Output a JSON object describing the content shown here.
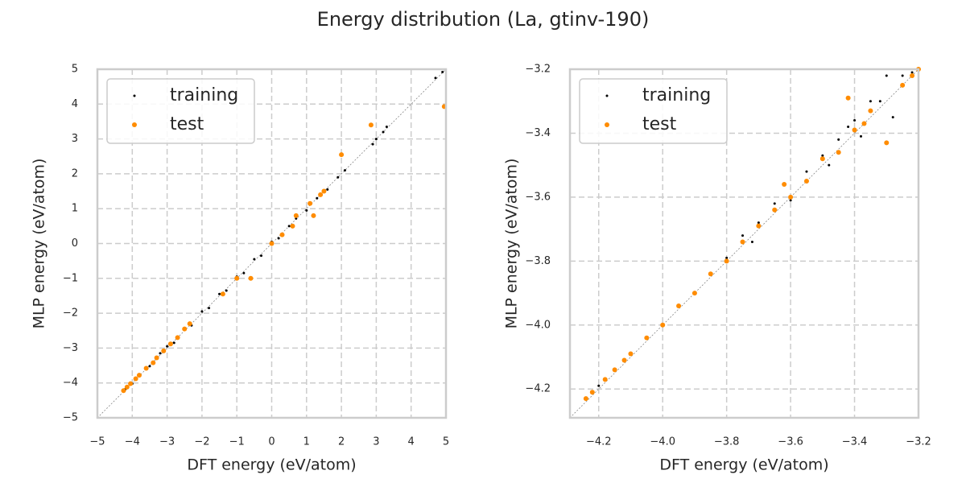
{
  "title": "Energy distribution (La, gtinv-190)",
  "chart_data": [
    {
      "type": "scatter",
      "xlabel": "DFT energy (eV/atom)",
      "ylabel": "MLP energy (eV/atom)",
      "xlim": [
        -5,
        5
      ],
      "ylim": [
        -5,
        5
      ],
      "xticks": [
        {
          "value": -5,
          "label": "−5"
        },
        {
          "value": -4,
          "label": "−4"
        },
        {
          "value": -3,
          "label": "−3"
        },
        {
          "value": -2,
          "label": "−2"
        },
        {
          "value": -1,
          "label": "−1"
        },
        0,
        1,
        2,
        3,
        4,
        5
      ],
      "yticks": [
        {
          "value": -5,
          "label": "−5"
        },
        {
          "value": -4,
          "label": "−4"
        },
        {
          "value": -3,
          "label": "−3"
        },
        {
          "value": -2,
          "label": "−2"
        },
        {
          "value": -1,
          "label": "−1"
        },
        0,
        1,
        2,
        3,
        4,
        5
      ],
      "grid": true,
      "legend": "upper left",
      "series": [
        {
          "name": "training",
          "color": "#000000",
          "x": [
            -4.2,
            -4.0,
            -3.8,
            -3.5,
            -3.2,
            -3.0,
            -2.8,
            -2.5,
            -2.3,
            -2.0,
            -1.8,
            -1.5,
            -1.3,
            -1.0,
            -0.8,
            -0.5,
            -0.3,
            0.0,
            0.2,
            0.5,
            0.7,
            1.0,
            1.3,
            1.6,
            1.9,
            2.1,
            2.9,
            3.0,
            3.2,
            3.3,
            4.7,
            4.9
          ],
          "values": [
            -4.18,
            -4.02,
            -3.75,
            -3.52,
            -3.15,
            -2.95,
            -2.85,
            -2.45,
            -2.35,
            -1.95,
            -1.85,
            -1.45,
            -1.35,
            -0.95,
            -0.85,
            -0.45,
            -0.35,
            0.05,
            0.15,
            0.5,
            0.72,
            0.95,
            1.3,
            1.55,
            1.9,
            2.1,
            2.85,
            3.0,
            3.2,
            3.35,
            4.75,
            4.92
          ]
        },
        {
          "name": "test",
          "color": "#ff8c00",
          "x": [
            -4.25,
            -4.15,
            -4.05,
            -3.9,
            -3.8,
            -3.6,
            -3.4,
            -3.3,
            -3.1,
            -2.9,
            -2.7,
            -2.5,
            -2.35,
            -1.4,
            -1.0,
            -0.6,
            0.0,
            0.3,
            0.6,
            0.7,
            1.1,
            1.2,
            1.4,
            1.5,
            2.0,
            2.85,
            4.95
          ],
          "values": [
            -4.22,
            -4.12,
            -4.02,
            -3.88,
            -3.78,
            -3.58,
            -3.42,
            -3.28,
            -3.08,
            -2.88,
            -2.7,
            -2.45,
            -2.3,
            -1.45,
            -1.0,
            -1.0,
            0.0,
            0.25,
            0.5,
            0.8,
            1.15,
            0.8,
            1.4,
            1.5,
            2.55,
            3.4,
            3.93
          ]
        }
      ]
    },
    {
      "type": "scatter",
      "xlabel": "DFT energy (eV/atom)",
      "ylabel": "MLP energy (eV/atom)",
      "xlim": [
        -4.29,
        -3.2
      ],
      "ylim": [
        -4.29,
        -3.2
      ],
      "xticks": [
        {
          "value": -4.2,
          "label": "−4.2"
        },
        {
          "value": -4.0,
          "label": "−4.0"
        },
        {
          "value": -3.8,
          "label": "−3.8"
        },
        {
          "value": -3.6,
          "label": "−3.6"
        },
        {
          "value": -3.4,
          "label": "−3.4"
        },
        {
          "value": -3.2,
          "label": "−3.2"
        }
      ],
      "yticks": [
        {
          "value": -4.2,
          "label": "−4.2"
        },
        {
          "value": -4.0,
          "label": "−4.0"
        },
        {
          "value": -3.8,
          "label": "−3.8"
        },
        {
          "value": -3.6,
          "label": "−3.6"
        },
        {
          "value": -3.4,
          "label": "−3.4"
        },
        {
          "value": -3.2,
          "label": "−3.2"
        }
      ],
      "grid": true,
      "legend": "upper left",
      "series": [
        {
          "name": "training",
          "color": "#000000",
          "x": [
            -4.2,
            -4.1,
            -4.0,
            -3.95,
            -3.9,
            -3.85,
            -3.8,
            -3.75,
            -3.72,
            -3.7,
            -3.65,
            -3.6,
            -3.55,
            -3.5,
            -3.48,
            -3.45,
            -3.42,
            -3.4,
            -3.38,
            -3.35,
            -3.32,
            -3.3,
            -3.28,
            -3.25,
            -3.22
          ],
          "values": [
            -4.19,
            -4.09,
            -4.0,
            -3.94,
            -3.9,
            -3.84,
            -3.79,
            -3.72,
            -3.74,
            -3.68,
            -3.62,
            -3.61,
            -3.52,
            -3.47,
            -3.5,
            -3.42,
            -3.38,
            -3.36,
            -3.41,
            -3.3,
            -3.3,
            -3.22,
            -3.35,
            -3.22,
            -3.21
          ]
        },
        {
          "name": "test",
          "color": "#ff8c00",
          "x": [
            -4.24,
            -4.22,
            -4.18,
            -4.15,
            -4.12,
            -4.1,
            -4.05,
            -4.0,
            -3.95,
            -3.9,
            -3.85,
            -3.8,
            -3.75,
            -3.7,
            -3.65,
            -3.62,
            -3.6,
            -3.55,
            -3.5,
            -3.45,
            -3.42,
            -3.4,
            -3.37,
            -3.35,
            -3.3,
            -3.25,
            -3.22,
            -3.2
          ],
          "values": [
            -4.23,
            -4.21,
            -4.17,
            -4.14,
            -4.11,
            -4.09,
            -4.04,
            -4.0,
            -3.94,
            -3.9,
            -3.84,
            -3.8,
            -3.74,
            -3.69,
            -3.64,
            -3.56,
            -3.6,
            -3.55,
            -3.48,
            -3.46,
            -3.29,
            -3.39,
            -3.37,
            -3.33,
            -3.43,
            -3.25,
            -3.22,
            -3.2
          ]
        }
      ]
    }
  ]
}
